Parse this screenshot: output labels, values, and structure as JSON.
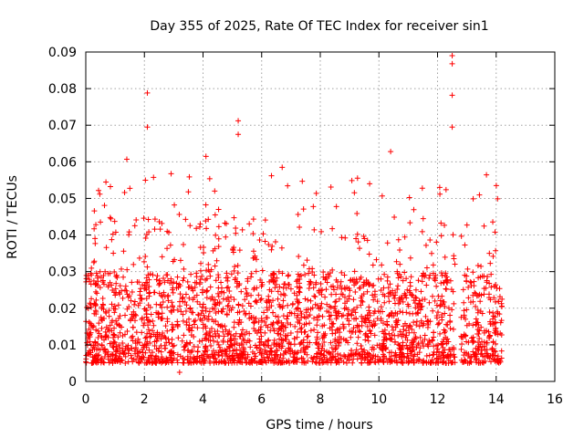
{
  "chart_data": {
    "type": "scatter",
    "title": "Day 355 of 2025, Rate Of TEC Index for receiver sin1",
    "xlabel": "GPS time / hours",
    "ylabel": "ROTI / TECUs",
    "xlim": [
      0,
      16
    ],
    "ylim": [
      0,
      0.09
    ],
    "xticks": [
      0,
      2,
      4,
      6,
      8,
      10,
      12,
      14,
      16
    ],
    "yticks": [
      0,
      0.01,
      0.02,
      0.03,
      0.04,
      0.05,
      0.06,
      0.07,
      0.08,
      0.09
    ],
    "xtick_labels": [
      "0",
      "2",
      "4",
      "6",
      "8",
      "10",
      "12",
      "14",
      "16"
    ],
    "ytick_labels": [
      "0",
      "0.01",
      "0.02",
      "0.03",
      "0.04",
      "0.05",
      "0.06",
      "0.07",
      "0.08",
      "0.09"
    ],
    "grid": true,
    "marker": "+",
    "color": "#ff0000",
    "data_coverage_hours": [
      0,
      14.2
    ],
    "data_gap_hours": [
      12.6,
      12.8
    ],
    "typical_range": [
      0.005,
      0.03
    ],
    "notable_points": [
      {
        "x": 2.1,
        "y": 0.0788
      },
      {
        "x": 2.1,
        "y": 0.0695
      },
      {
        "x": 5.2,
        "y": 0.0712
      },
      {
        "x": 5.2,
        "y": 0.0675
      },
      {
        "x": 1.4,
        "y": 0.0607
      },
      {
        "x": 4.1,
        "y": 0.0615
      },
      {
        "x": 6.7,
        "y": 0.0585
      },
      {
        "x": 10.4,
        "y": 0.0628
      },
      {
        "x": 12.5,
        "y": 0.089
      },
      {
        "x": 12.5,
        "y": 0.0868
      },
      {
        "x": 12.5,
        "y": 0.0782
      },
      {
        "x": 12.5,
        "y": 0.0695
      },
      {
        "x": 3.5,
        "y": 0.0518
      },
      {
        "x": 3.2,
        "y": 0.0025
      }
    ]
  }
}
